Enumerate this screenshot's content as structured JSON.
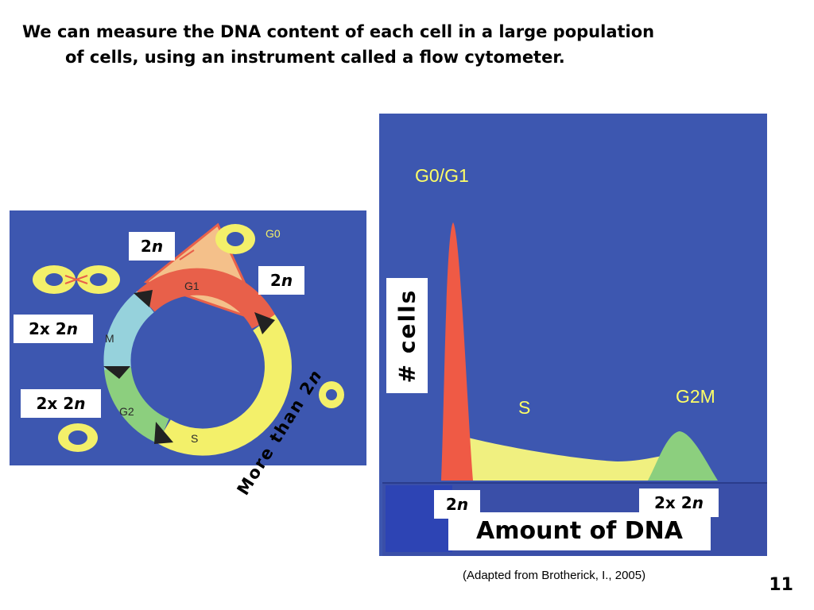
{
  "title": {
    "line1": "We can measure the DNA content of each cell in a large population",
    "line2": "of cells, using an instrument called a flow cytometer."
  },
  "cycle": {
    "phase_labels": {
      "g0": "G0",
      "g1": "G1",
      "s": "S",
      "g2": "G2",
      "m": "M"
    },
    "ploidy_labels": {
      "g0_top": {
        "num": "2",
        "var": "n"
      },
      "g1_right": {
        "num": "2",
        "var": "n"
      },
      "m_left": {
        "pre": "2x ",
        "num": "2",
        "var": "n"
      },
      "g2_left": {
        "pre": "2x ",
        "num": "2",
        "var": "n"
      },
      "s_rotated": {
        "text": "More than 2",
        "var": "n"
      }
    },
    "colors": {
      "g1": "#e8604a",
      "s": "#f3f06a",
      "g2": "#8ccf7e",
      "m": "#96d2dc",
      "g0": "#f4c08a",
      "background": "#3d57b0"
    }
  },
  "histogram": {
    "peak_labels": {
      "g0g1": "G0/G1",
      "s": "S",
      "g2m": "G2M"
    },
    "y_label": "# cells",
    "x_label": "Amount of DNA",
    "x_marks": {
      "first": {
        "num": "2",
        "var": "n"
      },
      "second": {
        "pre": "2x ",
        "num": "2",
        "var": "n"
      }
    },
    "colors": {
      "g0g1": "#ef5a45",
      "s": "#f0f080",
      "g2m": "#8ccf7e",
      "background": "#3d57b0",
      "label": "#ffff66"
    }
  },
  "credit": "(Adapted from Brotherick, I., 2005)",
  "page_number": "11"
}
